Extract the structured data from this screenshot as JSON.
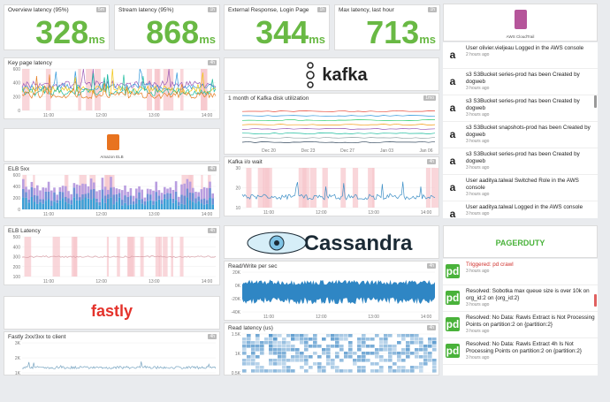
{
  "query_values": [
    {
      "title": "Overview latency (95%)",
      "badge": "5m",
      "value": 328,
      "unit": "ms"
    },
    {
      "title": "Stream latency (95%)",
      "badge": "1h",
      "value": 868,
      "unit": "ms"
    },
    {
      "title": "External Response, Login Page",
      "badge": "1h",
      "value": 344,
      "unit": "ms"
    },
    {
      "title": "Max latency, last hour",
      "badge": "1h",
      "value": 713,
      "unit": "ms"
    }
  ],
  "graphs": [
    {
      "title": "Key page latency",
      "badge": "4h",
      "yticks": [
        "600",
        "400",
        "200",
        "0"
      ],
      "xticks": [
        "11:00",
        "12:00",
        "13:00",
        "14:00"
      ]
    },
    {
      "title": "ELB 5xx",
      "badge": "4h",
      "yticks": [
        "600",
        "400",
        "200",
        "0"
      ],
      "xticks": [
        "11:00",
        "12:00",
        "13:00",
        "14:00"
      ]
    },
    {
      "title": "ELB Latency",
      "badge": "4h",
      "yticks": [
        "500",
        "400",
        "300",
        "200",
        "100"
      ],
      "xticks": [
        "11:00",
        "12:00",
        "13:00",
        "14:00"
      ]
    },
    {
      "title": "Fastly 2xx/3xx to client",
      "badge": "4h",
      "yticks": [
        "3K",
        "2K",
        "1K"
      ],
      "xticks": []
    },
    {
      "title": "1 month of Kafka disk utilization",
      "badge": "1mo",
      "yticks": [],
      "xticks": [
        "Dec 20",
        "Dec 23",
        "Dec 27",
        "Jan 03",
        "Jan 06"
      ]
    },
    {
      "title": "Kafka i/o wait",
      "badge": "4h",
      "yticks": [
        "30",
        "20",
        "10"
      ],
      "xticks": [
        "11:00",
        "12:00",
        "13:00",
        "14:00"
      ]
    },
    {
      "title": "Read/Write per sec",
      "badge": "4h",
      "yticks": [
        "20K",
        "0K",
        "-20K",
        "-40K"
      ],
      "xticks": [
        "11:00",
        "12:00",
        "13:00",
        "14:00"
      ]
    },
    {
      "title": "Read latency (us)",
      "badge": "4h",
      "yticks": [
        "1.5K",
        "1K",
        "0.5K"
      ],
      "xticks": []
    }
  ],
  "logos": {
    "kafka": "kafka",
    "cassandra": "Cassandra",
    "fastly": "fastly",
    "pagerduty": "PAGERDUTY",
    "cloudtrail": "AWS CloudTrail",
    "elb": "Amazon ELB"
  },
  "cloudtrail_events": [
    {
      "text": "User olivier.vieljeau Logged in the AWS console",
      "time": "2 hours ago"
    },
    {
      "text": "s3 S3Bucket series-prod has been Created by dogweb",
      "time": "3 hours ago"
    },
    {
      "text": "s3 S3Bucket series-prod has been Created by dogweb",
      "time": "3 hours ago"
    },
    {
      "text": "s3 S3Bucket snapshots-prod has been Created by dogweb",
      "time": "3 hours ago"
    },
    {
      "text": "s3 S3Bucket series-prod has been Created by dogweb",
      "time": "3 hours ago"
    },
    {
      "text": "User aaditya.talwal Switched Role in the AWS console",
      "time": "3 hours ago"
    },
    {
      "text": "User aaditya.talwal Logged in the AWS console",
      "time": "3 hours ago"
    }
  ],
  "pagerduty_events": [
    {
      "text": "Triggered: pd crawl",
      "time": "3 hours ago"
    },
    {
      "text": "Resolved: Sobotka max queue size is over 10k on org_id:2 on {org_id:2}",
      "time": "3 hours ago"
    },
    {
      "text": "Resolved: No Data: Rawls Extract is Not Processing Points on partition:2 on {partition:2}",
      "time": "3 hours ago"
    },
    {
      "text": "Resolved: No Data: Rawls Extract 4h Is Not Processing Points on partition:2 on {partition:2}",
      "time": "3 hours ago"
    }
  ]
}
